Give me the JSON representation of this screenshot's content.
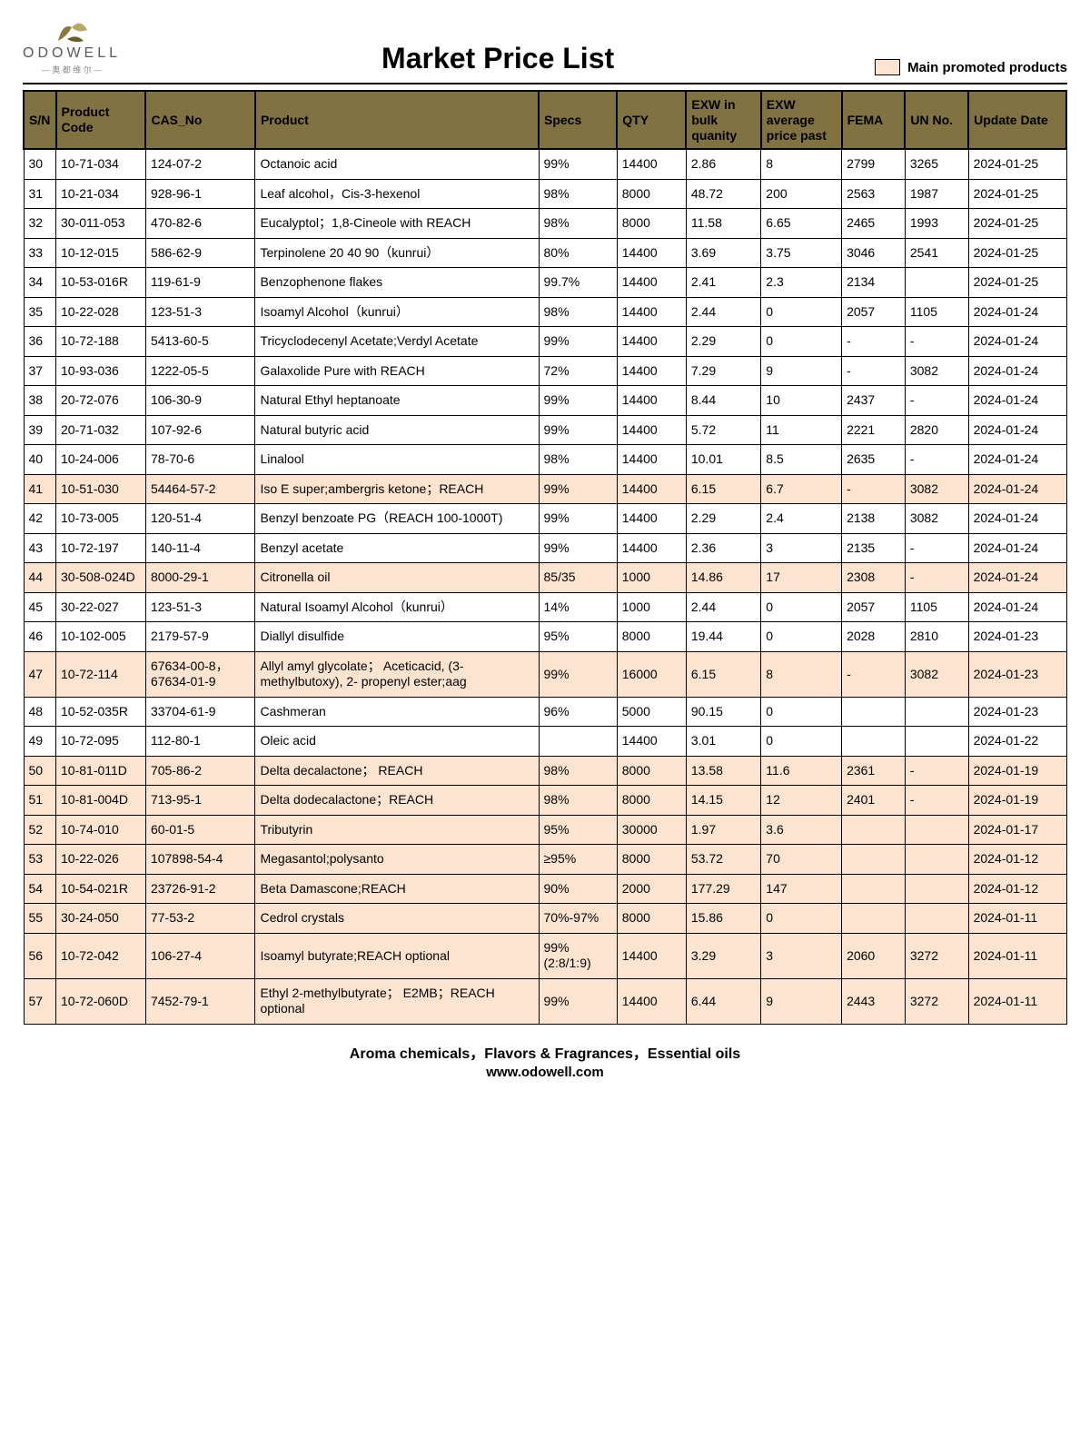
{
  "brand": {
    "name": "ODOWELL",
    "sub": "— 奥 都 维 尔 —"
  },
  "title": "Market Price List",
  "legend_label": "Main promoted products",
  "columns": [
    "S/N",
    "Product Code",
    "CAS_No",
    "Product",
    "Specs",
    "QTY",
    "EXW in bulk quanity",
    "EXW average price past",
    "FEMA",
    "UN No.",
    "Update Date"
  ],
  "footer": {
    "line1": "Aroma chemicals，Flavors & Fragrances，Essential oils",
    "line2": "www.odowell.com"
  },
  "colors": {
    "header_bg": "#807241",
    "promoted_bg": "#fce4d0",
    "border": "#000000"
  },
  "rows": [
    {
      "sn": "30",
      "code": "10-71-034",
      "cas": "124-07-2",
      "product": "Octanoic acid",
      "specs": "99%",
      "qty": "14400",
      "exw1": "2.86",
      "exw2": "8",
      "fema": "2799",
      "un": "3265",
      "date": "2024-01-25",
      "promoted": false
    },
    {
      "sn": "31",
      "code": "10-21-034",
      "cas": "928-96-1",
      "product": "Leaf alcohol，Cis-3-hexenol",
      "specs": "98%",
      "qty": "8000",
      "exw1": "48.72",
      "exw2": "200",
      "fema": "2563",
      "un": "1987",
      "date": "2024-01-25",
      "promoted": false
    },
    {
      "sn": "32",
      "code": "30-011-053",
      "cas": "470-82-6",
      "product": "Eucalyptol；1,8-Cineole with REACH",
      "specs": "98%",
      "qty": "8000",
      "exw1": "11.58",
      "exw2": "6.65",
      "fema": "2465",
      "un": "1993",
      "date": "2024-01-25",
      "promoted": false
    },
    {
      "sn": "33",
      "code": "10-12-015",
      "cas": "586-62-9",
      "product": "Terpinolene 20 40 90（kunrui）",
      "specs": "80%",
      "qty": "14400",
      "exw1": "3.69",
      "exw2": "3.75",
      "fema": "3046",
      "un": "2541",
      "date": "2024-01-25",
      "promoted": false
    },
    {
      "sn": "34",
      "code": "10-53-016R",
      "cas": "119-61-9",
      "product": "Benzophenone flakes",
      "specs": "99.7%",
      "qty": "14400",
      "exw1": "2.41",
      "exw2": "2.3",
      "fema": "2134",
      "un": "",
      "date": "2024-01-25",
      "promoted": false
    },
    {
      "sn": "35",
      "code": "10-22-028",
      "cas": "123-51-3",
      "product": "Isoamyl Alcohol（kunrui）",
      "specs": "98%",
      "qty": "14400",
      "exw1": "2.44",
      "exw2": "0",
      "fema": "2057",
      "un": "1105",
      "date": "2024-01-24",
      "promoted": false
    },
    {
      "sn": "36",
      "code": "10-72-188",
      "cas": "5413-60-5",
      "product": "Tricyclodecenyl Acetate;Verdyl Acetate",
      "specs": "99%",
      "qty": "14400",
      "exw1": "2.29",
      "exw2": "0",
      "fema": "-",
      "un": "-",
      "date": "2024-01-24",
      "promoted": false
    },
    {
      "sn": "37",
      "code": "10-93-036",
      "cas": "1222-05-5",
      "product": "Galaxolide Pure with REACH",
      "specs": "72%",
      "qty": "14400",
      "exw1": "7.29",
      "exw2": "9",
      "fema": "-",
      "un": "3082",
      "date": "2024-01-24",
      "promoted": false
    },
    {
      "sn": "38",
      "code": "20-72-076",
      "cas": "106-30-9",
      "product": "Natural Ethyl heptanoate",
      "specs": "99%",
      "qty": "14400",
      "exw1": "8.44",
      "exw2": "10",
      "fema": "2437",
      "un": "-",
      "date": "2024-01-24",
      "promoted": false
    },
    {
      "sn": "39",
      "code": "20-71-032",
      "cas": "107-92-6",
      "product": "Natural butyric acid",
      "specs": "99%",
      "qty": "14400",
      "exw1": "5.72",
      "exw2": "11",
      "fema": "2221",
      "un": "2820",
      "date": "2024-01-24",
      "promoted": false
    },
    {
      "sn": "40",
      "code": "10-24-006",
      "cas": "78-70-6",
      "product": "Linalool",
      "specs": "98%",
      "qty": "14400",
      "exw1": "10.01",
      "exw2": "8.5",
      "fema": "2635",
      "un": "-",
      "date": "2024-01-24",
      "promoted": false
    },
    {
      "sn": "41",
      "code": "10-51-030",
      "cas": "54464-57-2",
      "product": "Iso E super;ambergris ketone；REACH",
      "specs": "99%",
      "qty": "14400",
      "exw1": "6.15",
      "exw2": "6.7",
      "fema": "-",
      "un": "3082",
      "date": "2024-01-24",
      "promoted": true
    },
    {
      "sn": "42",
      "code": "10-73-005",
      "cas": "120-51-4",
      "product": "Benzyl benzoate PG（REACH 100-1000T)",
      "specs": "99%",
      "qty": "14400",
      "exw1": "2.29",
      "exw2": "2.4",
      "fema": "2138",
      "un": "3082",
      "date": "2024-01-24",
      "promoted": false
    },
    {
      "sn": "43",
      "code": "10-72-197",
      "cas": "140-11-4",
      "product": "Benzyl acetate",
      "specs": "99%",
      "qty": "14400",
      "exw1": "2.36",
      "exw2": "3",
      "fema": "2135",
      "un": "-",
      "date": "2024-01-24",
      "promoted": false
    },
    {
      "sn": "44",
      "code": "30-508-024D",
      "cas": "8000-29-1",
      "product": "Citronella oil",
      "specs": "85/35",
      "qty": "1000",
      "exw1": "14.86",
      "exw2": "17",
      "fema": "2308",
      "un": "-",
      "date": "2024-01-24",
      "promoted": true
    },
    {
      "sn": "45",
      "code": "30-22-027",
      "cas": "123-51-3",
      "product": "Natural Isoamyl Alcohol（kunrui）",
      "specs": "14%",
      "qty": "1000",
      "exw1": "2.44",
      "exw2": "0",
      "fema": "2057",
      "un": "1105",
      "date": "2024-01-24",
      "promoted": false
    },
    {
      "sn": "46",
      "code": "10-102-005",
      "cas": "2179-57-9",
      "product": "Diallyl disulfide",
      "specs": "95%",
      "qty": "8000",
      "exw1": "19.44",
      "exw2": "0",
      "fema": "2028",
      "un": "2810",
      "date": "2024-01-23",
      "promoted": false
    },
    {
      "sn": "47",
      "code": "10-72-114",
      "cas": "67634-00-8，67634-01-9",
      "product": "Allyl amyl glycolate； Aceticacid, (3-methylbutoxy), 2- propenyl ester;aag",
      "specs": "99%",
      "qty": "16000",
      "exw1": "6.15",
      "exw2": "8",
      "fema": "-",
      "un": "3082",
      "date": "2024-01-23",
      "promoted": true
    },
    {
      "sn": "48",
      "code": "10-52-035R",
      "cas": "33704-61-9",
      "product": "Cashmeran",
      "specs": "96%",
      "qty": "5000",
      "exw1": "90.15",
      "exw2": "0",
      "fema": "",
      "un": "",
      "date": "2024-01-23",
      "promoted": false
    },
    {
      "sn": "49",
      "code": "10-72-095",
      "cas": "112-80-1",
      "product": "Oleic acid",
      "specs": "",
      "qty": "14400",
      "exw1": "3.01",
      "exw2": "0",
      "fema": "",
      "un": "",
      "date": "2024-01-22",
      "promoted": false
    },
    {
      "sn": "50",
      "code": "10-81-011D",
      "cas": "705-86-2",
      "product": "Delta decalactone； REACH",
      "specs": "98%",
      "qty": "8000",
      "exw1": "13.58",
      "exw2": "11.6",
      "fema": "2361",
      "un": "-",
      "date": "2024-01-19",
      "promoted": true
    },
    {
      "sn": "51",
      "code": "10-81-004D",
      "cas": "713-95-1",
      "product": "Delta dodecalactone；REACH",
      "specs": "98%",
      "qty": "8000",
      "exw1": "14.15",
      "exw2": "12",
      "fema": "2401",
      "un": "-",
      "date": "2024-01-19",
      "promoted": true
    },
    {
      "sn": "52",
      "code": "10-74-010",
      "cas": "60-01-5",
      "product": "Tributyrin",
      "specs": "95%",
      "qty": "30000",
      "exw1": "1.97",
      "exw2": "3.6",
      "fema": "",
      "un": "",
      "date": "2024-01-17",
      "promoted": true
    },
    {
      "sn": "53",
      "code": "10-22-026",
      "cas": "107898-54-4",
      "product": "Megasantol;polysanto",
      "specs": "≥95%",
      "qty": "8000",
      "exw1": "53.72",
      "exw2": "70",
      "fema": "",
      "un": "",
      "date": "2024-01-12",
      "promoted": true
    },
    {
      "sn": "54",
      "code": "10-54-021R",
      "cas": "23726-91-2",
      "product": "Beta Damascone;REACH",
      "specs": "90%",
      "qty": "2000",
      "exw1": "177.29",
      "exw2": "147",
      "fema": "",
      "un": "",
      "date": "2024-01-12",
      "promoted": true
    },
    {
      "sn": "55",
      "code": "30-24-050",
      "cas": "77-53-2",
      "product": "Cedrol crystals",
      "specs": "70%-97%",
      "qty": "8000",
      "exw1": "15.86",
      "exw2": "0",
      "fema": "",
      "un": "",
      "date": "2024-01-11",
      "promoted": true
    },
    {
      "sn": "56",
      "code": "10-72-042",
      "cas": "106-27-4",
      "product": "Isoamyl butyrate;REACH optional",
      "specs": "99%(2:8/1:9)",
      "qty": "14400",
      "exw1": "3.29",
      "exw2": "3",
      "fema": "2060",
      "un": "3272",
      "date": "2024-01-11",
      "promoted": true
    },
    {
      "sn": "57",
      "code": "10-72-060D",
      "cas": "7452-79-1",
      "product": "Ethyl 2-methylbutyrate； E2MB；REACH optional",
      "specs": "99%",
      "qty": "14400",
      "exw1": "6.44",
      "exw2": "9",
      "fema": "2443",
      "un": "3272",
      "date": "2024-01-11",
      "promoted": true
    }
  ]
}
